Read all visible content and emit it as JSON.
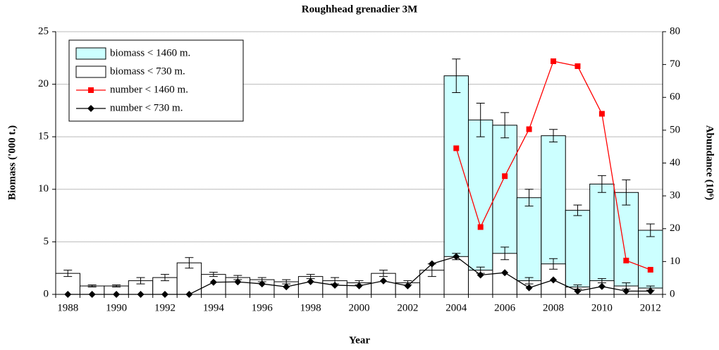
{
  "chart_data": {
    "type": "bar",
    "title": "Roughhead grenadier 3M",
    "xlabel": "Year",
    "ylabel": "Biomass ('000 t.)",
    "y2label": "Abundance (10⁶)",
    "categories": [
      1988,
      null,
      1990,
      null,
      1992,
      null,
      1994,
      null,
      1996,
      null,
      1998,
      null,
      2000,
      null,
      2002,
      null,
      2004,
      null,
      2006,
      null,
      2008,
      null,
      2010,
      null,
      2012
    ],
    "ylim": [
      0,
      25
    ],
    "yticks": [
      0,
      5,
      10,
      15,
      20,
      25
    ],
    "y2lim": [
      0,
      80
    ],
    "y2ticks": [
      0,
      10,
      20,
      30,
      40,
      50,
      60,
      70,
      80
    ],
    "grid": true,
    "legend": "top-left",
    "series": [
      {
        "name": "biomass < 1460 m.",
        "type": "bar",
        "color": "#ccffff",
        "values": [
          null,
          null,
          null,
          null,
          null,
          null,
          null,
          null,
          null,
          null,
          null,
          null,
          null,
          null,
          null,
          null,
          20.8,
          16.6,
          16.1,
          9.2,
          15.1,
          8.0,
          10.5,
          9.7,
          6.1
        ],
        "errors": [
          null,
          null,
          null,
          null,
          null,
          null,
          null,
          null,
          null,
          null,
          null,
          null,
          null,
          null,
          null,
          null,
          1.6,
          1.6,
          1.2,
          0.8,
          0.6,
          0.5,
          0.8,
          1.2,
          0.6
        ]
      },
      {
        "name": "biomass < 730 m.",
        "type": "bar",
        "color": "#ffffff",
        "values": [
          2.0,
          0.8,
          0.8,
          1.3,
          1.6,
          3.0,
          1.9,
          1.6,
          1.4,
          1.2,
          1.7,
          1.3,
          1.1,
          2.0,
          1.1,
          2.3,
          3.6,
          2.3,
          3.9,
          1.3,
          2.9,
          0.7,
          1.3,
          0.8,
          0.6
        ],
        "errors": [
          0.3,
          0.1,
          0.1,
          0.3,
          0.3,
          0.5,
          0.2,
          0.2,
          0.2,
          0.2,
          0.2,
          0.3,
          0.2,
          0.3,
          0.2,
          0.6,
          0.3,
          0.3,
          0.6,
          0.3,
          0.5,
          0.2,
          0.2,
          0.3,
          0.2
        ]
      },
      {
        "name": "number < 1460 m.",
        "type": "line",
        "axis": "y2",
        "color": "#ff0000",
        "marker": "square",
        "values": [
          null,
          null,
          null,
          null,
          null,
          null,
          null,
          null,
          null,
          null,
          null,
          null,
          null,
          null,
          null,
          null,
          44.5,
          20.5,
          36,
          50.3,
          71,
          69.5,
          55,
          10.3,
          7.5
        ]
      },
      {
        "name": "number < 730 m.",
        "type": "line",
        "axis": "y2",
        "color": "#000000",
        "marker": "diamond",
        "values": [
          0,
          0,
          0,
          0,
          0,
          0,
          3.7,
          3.8,
          3.2,
          2.3,
          3.9,
          2.8,
          2.6,
          4.1,
          2.6,
          9.3,
          11.5,
          5.9,
          6.6,
          2.0,
          4.4,
          1.0,
          2.4,
          1.0,
          1.0
        ]
      }
    ]
  }
}
